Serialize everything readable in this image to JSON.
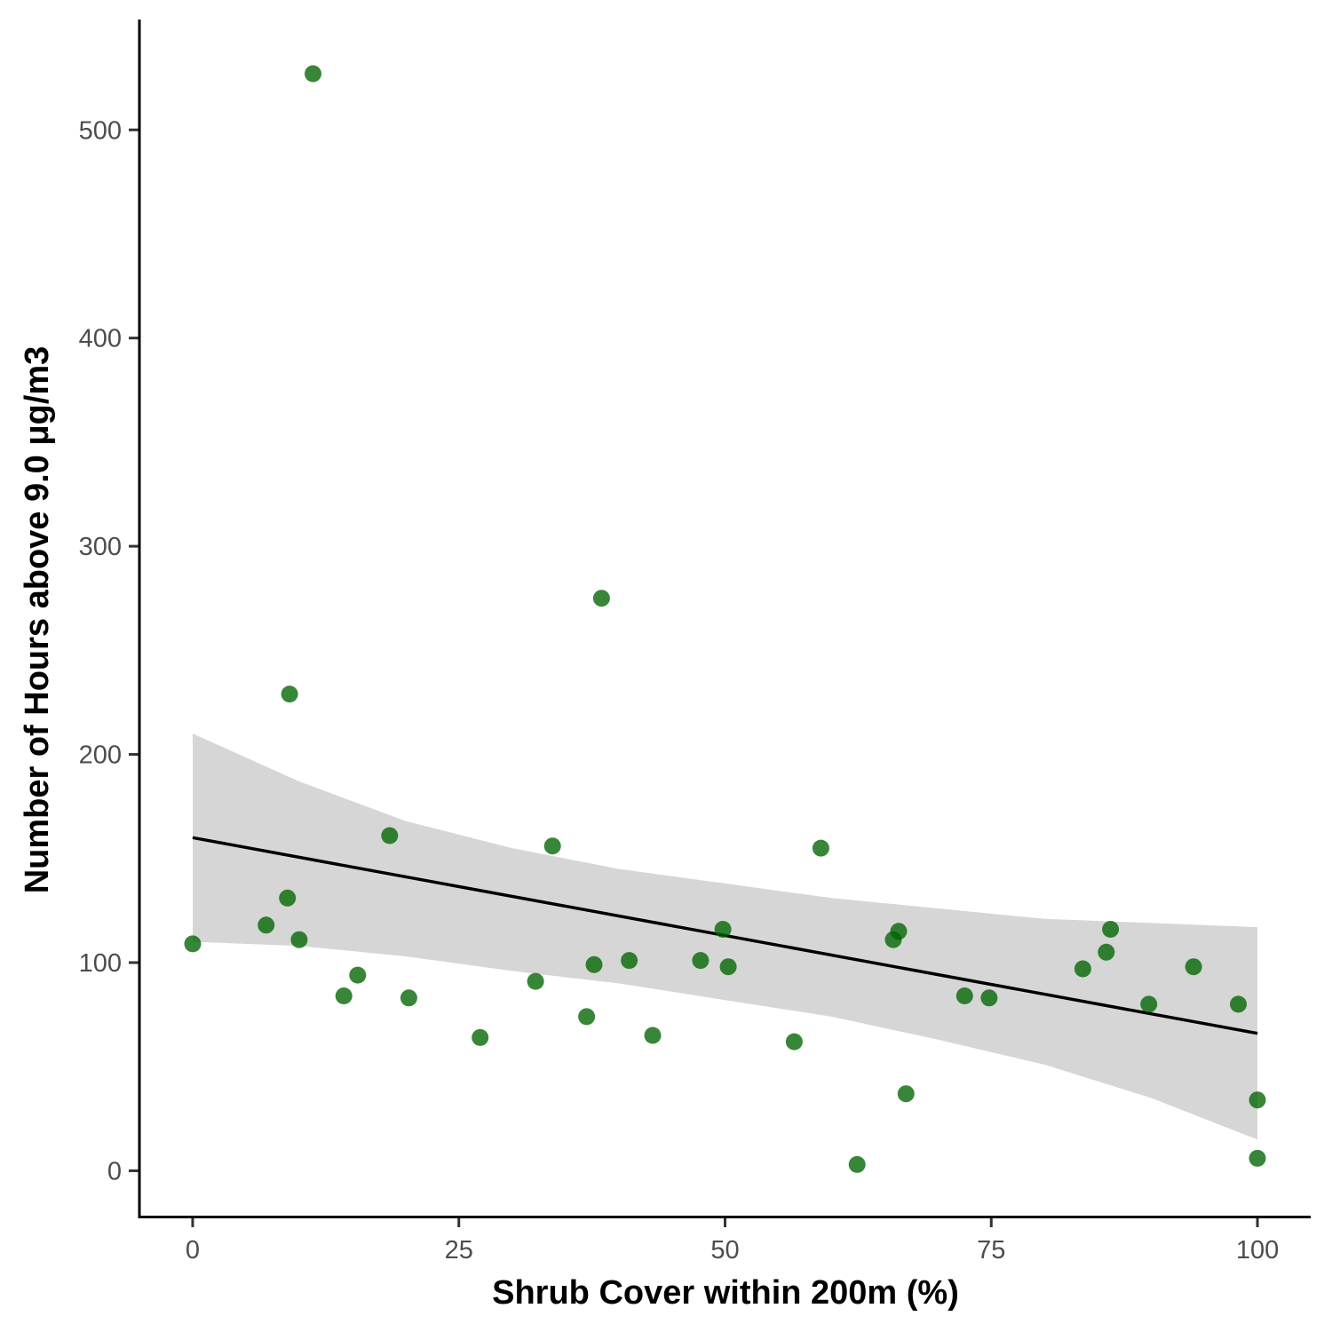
{
  "chart_data": {
    "type": "scatter",
    "xlabel": "Shrub Cover within 200m (%)",
    "ylabel": "Number of Hours above 9.0 μg/m3",
    "xlim": [
      -5,
      105
    ],
    "ylim": [
      -22,
      553
    ],
    "x_ticks": [
      0,
      25,
      50,
      75,
      100
    ],
    "x_tick_labels": [
      "0",
      "25",
      "50",
      "75",
      "100"
    ],
    "y_ticks": [
      0,
      100,
      200,
      300,
      400,
      500
    ],
    "y_tick_labels": [
      "0",
      "100",
      "200",
      "300",
      "400",
      "500"
    ],
    "grid": false,
    "point_color": "#006400",
    "band_color": "#d6d6d6",
    "line_color": "#000000",
    "points": [
      {
        "x": 0,
        "y": 109
      },
      {
        "x": 6.9,
        "y": 118
      },
      {
        "x": 8.9,
        "y": 131
      },
      {
        "x": 9.1,
        "y": 229
      },
      {
        "x": 10.0,
        "y": 111
      },
      {
        "x": 11.3,
        "y": 527
      },
      {
        "x": 14.2,
        "y": 84
      },
      {
        "x": 15.5,
        "y": 94
      },
      {
        "x": 18.5,
        "y": 161
      },
      {
        "x": 20.3,
        "y": 83
      },
      {
        "x": 27.0,
        "y": 64
      },
      {
        "x": 32.2,
        "y": 91
      },
      {
        "x": 33.8,
        "y": 156
      },
      {
        "x": 37.0,
        "y": 74
      },
      {
        "x": 37.7,
        "y": 99
      },
      {
        "x": 38.4,
        "y": 275
      },
      {
        "x": 41.0,
        "y": 101
      },
      {
        "x": 43.2,
        "y": 65
      },
      {
        "x": 47.7,
        "y": 101
      },
      {
        "x": 49.8,
        "y": 116
      },
      {
        "x": 50.3,
        "y": 98
      },
      {
        "x": 56.5,
        "y": 62
      },
      {
        "x": 59.0,
        "y": 155
      },
      {
        "x": 62.4,
        "y": 3
      },
      {
        "x": 65.8,
        "y": 111
      },
      {
        "x": 66.3,
        "y": 115
      },
      {
        "x": 67.0,
        "y": 37
      },
      {
        "x": 72.5,
        "y": 84
      },
      {
        "x": 74.8,
        "y": 83
      },
      {
        "x": 83.6,
        "y": 97
      },
      {
        "x": 85.8,
        "y": 105
      },
      {
        "x": 86.2,
        "y": 116
      },
      {
        "x": 89.8,
        "y": 80
      },
      {
        "x": 94.0,
        "y": 98
      },
      {
        "x": 98.2,
        "y": 80
      },
      {
        "x": 100.0,
        "y": 34
      },
      {
        "x": 100.0,
        "y": 6
      }
    ],
    "fit": {
      "x": [
        0,
        100
      ],
      "y": [
        160,
        66
      ]
    },
    "confidence_band": {
      "x": [
        0,
        10,
        20,
        30,
        40,
        50,
        60,
        70,
        80,
        90,
        100
      ],
      "upper": [
        210,
        187,
        168,
        155,
        145,
        138,
        131,
        126,
        121,
        119,
        117
      ],
      "lower": [
        110,
        108,
        103,
        96,
        90,
        82,
        74,
        63,
        51,
        35,
        15
      ]
    }
  }
}
